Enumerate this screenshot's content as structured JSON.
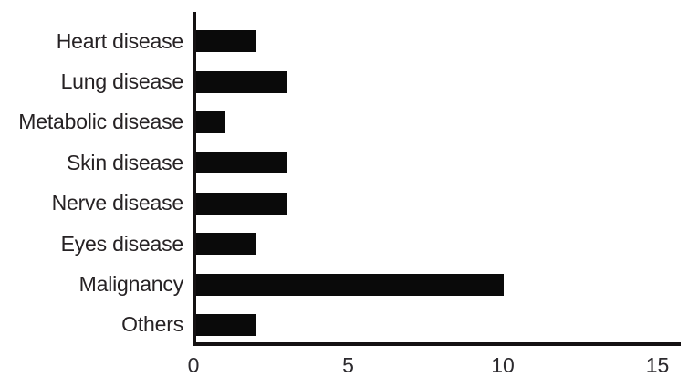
{
  "chart_data": {
    "type": "bar",
    "orientation": "horizontal",
    "title": "",
    "xlabel": "",
    "ylabel": "",
    "categories": [
      "Heart disease",
      "Lung disease",
      "Metabolic disease",
      "Skin disease",
      "Nerve disease",
      "Eyes disease",
      "Malignancy",
      "Others"
    ],
    "values": [
      2,
      3,
      1,
      3,
      3,
      2,
      10,
      2
    ],
    "x_ticks": [
      0,
      5,
      10,
      15
    ],
    "xlim": [
      0,
      15.7
    ],
    "grid": false,
    "legend": false,
    "bar_color": "#0a0a0a",
    "axis_color": "#141112",
    "label_color": "#262224",
    "tick_label_color": "#2c2a2e",
    "background_color": "#ffffff"
  }
}
